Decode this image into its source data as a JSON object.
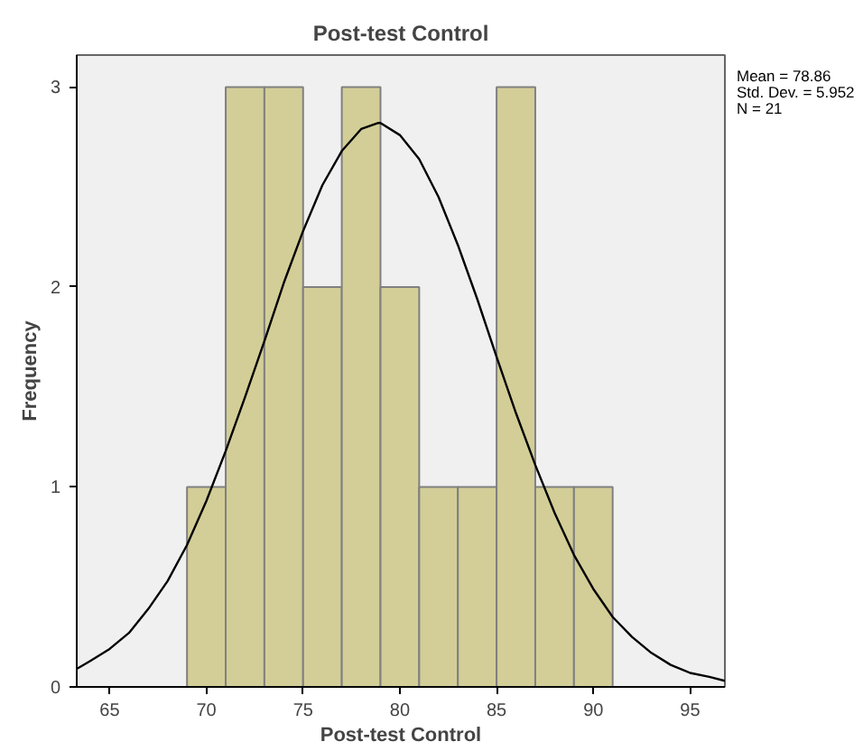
{
  "chart_data": {
    "type": "histogram",
    "title": "Post-test Control",
    "xlabel": "Post-test Control",
    "ylabel": "Frequency",
    "annotations": [
      "Mean = 78.86",
      "Std. Dev. = 5.952",
      "N = 21"
    ],
    "bins": [
      69,
      71,
      73,
      75,
      77,
      79,
      81,
      83,
      85,
      87,
      89,
      91
    ],
    "values": [
      1,
      3,
      3,
      2,
      3,
      2,
      1,
      1,
      3,
      1,
      1
    ],
    "color": "#d3ce97",
    "series": [
      {
        "type": "line",
        "color": "#000000",
        "x": [
          63.3,
          64,
          65,
          66,
          67,
          68,
          69,
          70,
          71,
          72,
          73,
          74,
          75,
          76,
          77,
          78,
          78.86,
          79,
          80,
          81,
          82,
          83,
          84,
          85,
          86,
          87,
          88,
          89,
          90,
          91,
          92,
          93,
          94,
          95,
          96,
          96.8
        ],
        "values": [
          0.09,
          0.13,
          0.19,
          0.27,
          0.39,
          0.53,
          0.71,
          0.93,
          1.18,
          1.45,
          1.73,
          2.02,
          2.28,
          2.51,
          2.68,
          2.79,
          2.82,
          2.82,
          2.76,
          2.64,
          2.45,
          2.21,
          1.94,
          1.65,
          1.37,
          1.11,
          0.87,
          0.66,
          0.49,
          0.35,
          0.25,
          0.17,
          0.11,
          0.07,
          0.05,
          0.03
        ]
      }
    ],
    "xlim": [
      63.3,
      96.8
    ],
    "ylim": [
      0,
      3.16
    ],
    "xticks": [
      65,
      70,
      75,
      80,
      85,
      90,
      95
    ],
    "yticks": [
      0,
      1,
      2,
      3
    ],
    "grid": false
  }
}
